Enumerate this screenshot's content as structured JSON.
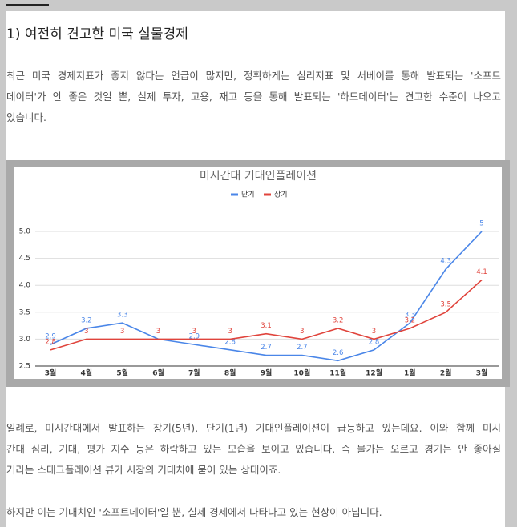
{
  "heading": "1) 여전히 견고한 미국 실물경제",
  "paragraphs": [
    [
      "최근 미국 경제지표가 좋지 않다는 언급이 많지만, 정확하게는 심리지표 및 서베이를 통해 발표되는 '소프트",
      "데이터'가 안 좋은 것일 뿐, 실제 투자, 고용, 재고 등을 통해 발표되는 '하드데이터'는 견고한 수준이 나오고",
      "있습니다."
    ],
    [
      "일례로, 미시간대에서 발표하는 장기(5년), 단기(1년) 기대인플레이션이 급등하고 있는데요. 이와 함께 미시",
      "간대 심리, 기대, 평가 지수 등은 하락하고 있는 모습을 보이고 있습니다. 즉 물가는 오르고 경기는 안 좋아질",
      "거라는 스태그플레이션 뷰가 시장의 기대치에 묻어 있는 상태이죠."
    ],
    [
      "하지만 이는 기대치인 '소프트데이터'일 뿐, 실제 경제에서 나타나고 있는 현상이 아닙니다."
    ]
  ],
  "chart_data": {
    "type": "line",
    "title": "미시간대 기대인플레이션",
    "categories": [
      "3월",
      "4월",
      "5월",
      "6월",
      "7월",
      "8월",
      "9월",
      "10월",
      "11월",
      "12월",
      "1월",
      "2월",
      "3월"
    ],
    "series": [
      {
        "name": "단기",
        "color": "#4a86e8",
        "values": [
          2.9,
          3.2,
          3.3,
          3,
          2.9,
          2.8,
          2.7,
          2.7,
          2.6,
          2.8,
          3.3,
          4.3,
          5
        ],
        "value_labels": [
          "2.9",
          "3.2",
          "3.3",
          null,
          "2.9",
          "2.8",
          "2.7",
          "2.7",
          "2.6",
          "2.8",
          "3.3",
          "4.3",
          "5"
        ]
      },
      {
        "name": "장기",
        "color": "#e0443c",
        "values": [
          2.8,
          3,
          3,
          3,
          3,
          3,
          3.1,
          3,
          3.2,
          3,
          3.2,
          3.5,
          4.1
        ]
      }
    ],
    "ylim": [
      2.5,
      5
    ],
    "yticks": [
      2.5,
      {
        "value": 3,
        "label": "3.0"
      },
      3.5,
      {
        "value": 4,
        "label": "4.0"
      },
      4.5,
      {
        "value": 5,
        "label": "5.0"
      }
    ],
    "grid": true,
    "legend": "top"
  }
}
